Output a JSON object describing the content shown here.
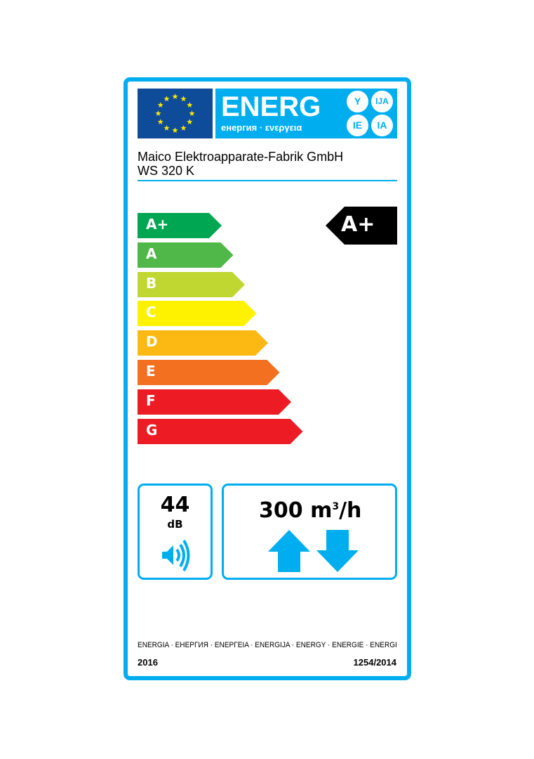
{
  "header": {
    "title": "ENERG",
    "subtitle": "енергия · ενεργεια",
    "suffixes": [
      "Y",
      "IJA",
      "IE",
      "IA"
    ],
    "flag_icon": "eu-flag-icon"
  },
  "supplier": "Maico Elektroapparate-Fabrik GmbH",
  "model": "WS 320 K",
  "scale": [
    {
      "label": "A+",
      "color": "#00a651"
    },
    {
      "label": "A",
      "color": "#50b848"
    },
    {
      "label": "B",
      "color": "#bfd730"
    },
    {
      "label": "C",
      "color": "#fff200"
    },
    {
      "label": "D",
      "color": "#fdb913"
    },
    {
      "label": "E",
      "color": "#f37021"
    },
    {
      "label": "F",
      "color": "#ed1c24"
    },
    {
      "label": "G",
      "color": "#ed1c24"
    }
  ],
  "rating": {
    "label": "A+",
    "color": "#000000"
  },
  "noise": {
    "value": "44",
    "unit": "dB",
    "icon": "speaker-icon"
  },
  "airflow": {
    "value": "300",
    "unit_base": "m",
    "unit_sup": "3",
    "unit_rest": "/h",
    "icons": [
      "arrow-up-icon",
      "arrow-down-icon"
    ]
  },
  "footer": {
    "languages": "ENERGIA · ЕНЕРГИЯ · ΕΝΕΡΓΕΙΑ · ENERGIJA · ENERGY · ENERGIE · ENERGI",
    "year": "2016",
    "regulation": "1254/2014"
  },
  "colors": {
    "accent": "#00aeef",
    "eu_blue": "#0e4c9a",
    "star": "#ffe500"
  }
}
